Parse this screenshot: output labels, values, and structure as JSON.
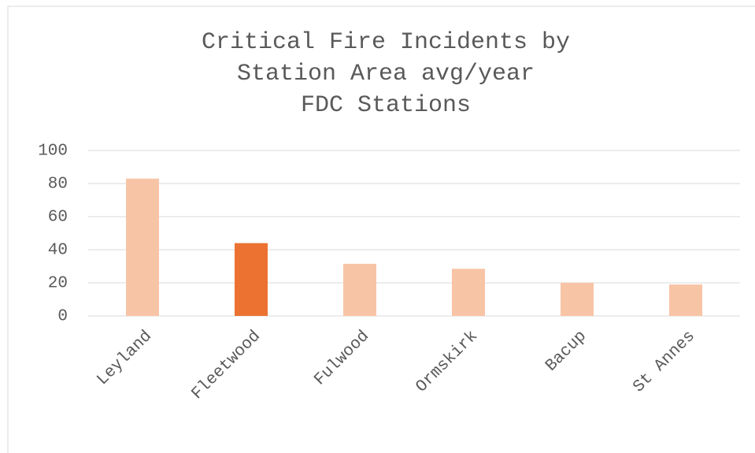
{
  "chart_data": {
    "type": "bar",
    "title": [
      "Critical Fire Incidents by",
      "Station Area avg/year",
      "FDC Stations"
    ],
    "categories": [
      "Leyland",
      "Fleetwood",
      "Fulwood",
      "Ormskirk",
      "Bacup",
      "St Annes"
    ],
    "values": [
      83,
      44,
      31.5,
      28.5,
      20,
      19
    ],
    "colors": [
      "#f8c4a6",
      "#ec7232",
      "#f8c4a6",
      "#f8c4a6",
      "#f8c4a6",
      "#f8c4a6"
    ],
    "ylim": [
      0,
      100
    ],
    "yticks": [
      0,
      20,
      40,
      60,
      80,
      100
    ],
    "grid": true
  }
}
